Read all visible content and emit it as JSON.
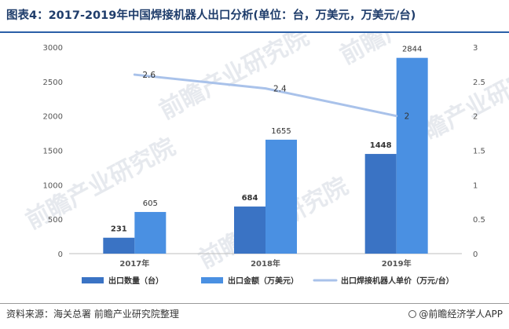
{
  "title": "图表4：2017-2019年中国焊接机器人出口分析(单位：台，万美元，万美元/台)",
  "source": "资料来源：海关总署 前瞻产业研究院整理",
  "brand": "@前瞻经济学人APP",
  "watermark": "前瞻产业研究院",
  "chart_data": {
    "type": "bar",
    "categories": [
      "2017年",
      "2018年",
      "2019年"
    ],
    "series": [
      {
        "name": "出口数量（台）",
        "kind": "bar",
        "axis": "left",
        "color": "#3a73c4",
        "values": [
          231,
          684,
          1448
        ]
      },
      {
        "name": "出口金额（万美元）",
        "kind": "bar",
        "axis": "left",
        "color": "#4a90e2",
        "values": [
          605,
          1655,
          2844
        ]
      },
      {
        "name": "出口焊接机器人单价（万元/台）",
        "kind": "line",
        "axis": "right",
        "color": "#a9c2ea",
        "values": [
          2.6,
          2.4,
          2
        ]
      }
    ],
    "y_left": {
      "min": 0,
      "max": 3000,
      "ticks": [
        "0",
        "500",
        "1000",
        "1500",
        "2000",
        "2500",
        "3000"
      ]
    },
    "y_right": {
      "min": 0,
      "max": 3,
      "ticks": [
        "0",
        "0.5",
        "1",
        "1.5",
        "2",
        "2.5",
        "3"
      ]
    },
    "legend_position": "bottom",
    "grid": false
  }
}
